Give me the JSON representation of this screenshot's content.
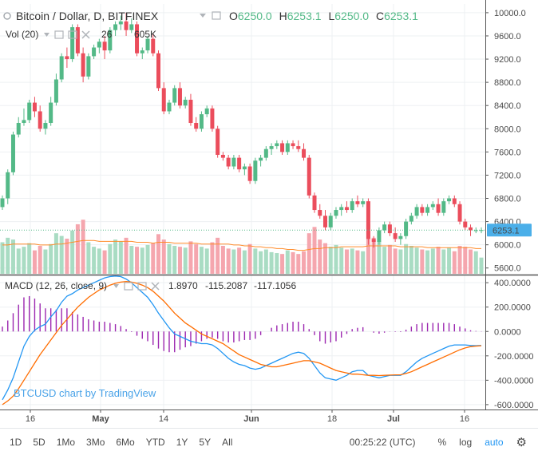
{
  "header": {
    "symbol_title": "Bitcoin / Dollar, D, BITFINEX",
    "ohlc": {
      "o_label": "O",
      "o": "6250.0",
      "h_label": "H",
      "h": "6253.1",
      "l_label": "L",
      "l": "6250.0",
      "c_label": "C",
      "c": "6253.1"
    },
    "volume_label": "Vol (20)",
    "volume_values": "26",
    "volume_ma": "605K"
  },
  "price_axis": {
    "ticks": [
      "10000.0",
      "9600.0",
      "9200.0",
      "8800.0",
      "8400.0",
      "8000.0",
      "7600.0",
      "7200.0",
      "6800.0",
      "6400.0",
      "6000.0",
      "5600.0"
    ],
    "last_price": "6253.1"
  },
  "macd": {
    "label": "MACD (12, 26, close, 9)",
    "hist_value": "1.8970",
    "macd_value": "-115.2087",
    "signal_value": "-117.1056",
    "ticks": [
      "400.0000",
      "200.0000",
      "0.0000",
      "-200.0000",
      "-400.0000",
      "-600.0000"
    ]
  },
  "time_axis": {
    "labels": [
      "16",
      "May",
      "14",
      "Jun",
      "18",
      "Jul",
      "16"
    ]
  },
  "watermark": "BTCUSD chart by TradingView",
  "bottom_bar": {
    "ranges": [
      "1D",
      "5D",
      "1Mo",
      "3Mo",
      "6Mo",
      "YTD",
      "1Y",
      "5Y",
      "All"
    ],
    "clock": "00:25:22 (UTC)",
    "percent": "%",
    "log": "log",
    "auto": "auto"
  },
  "colors": {
    "up": "#53b987",
    "down": "#eb4d5c",
    "vol_up": "#a9dcc3",
    "vol_down": "#f5a6ae",
    "ma": "#ff8c2b",
    "macd": "#2196f3",
    "signal": "#ff6d00",
    "hist": "#9c27b0",
    "grid": "#eef0f3",
    "last": "#4bafe9",
    "last_line": "#53b987"
  },
  "chart_data": [
    {
      "type": "candlestick",
      "title": "Bitcoin / Dollar, D, BITFINEX",
      "x_labels": [
        "16",
        "May",
        "14",
        "Jun",
        "18",
        "Jul",
        "16"
      ],
      "ylim": [
        5500,
        10150
      ],
      "ohlc": [
        [
          6650,
          6850,
          6600,
          6800
        ],
        [
          6800,
          7300,
          6700,
          7250
        ],
        [
          7250,
          7950,
          7200,
          7900
        ],
        [
          7900,
          8200,
          7850,
          8100
        ],
        [
          8100,
          8350,
          8050,
          8150
        ],
        [
          8150,
          8500,
          8100,
          8450
        ],
        [
          8450,
          8550,
          8200,
          8300
        ],
        [
          8300,
          8400,
          7950,
          8000
        ],
        [
          8000,
          8150,
          7900,
          8100
        ],
        [
          8100,
          8550,
          8050,
          8450
        ],
        [
          8450,
          8950,
          8400,
          8850
        ],
        [
          8850,
          9300,
          8800,
          9250
        ],
        [
          9250,
          9400,
          9050,
          9200
        ],
        [
          9200,
          9800,
          9150,
          9750
        ],
        [
          9750,
          9800,
          9250,
          9300
        ],
        [
          9300,
          9400,
          8800,
          8900
        ],
        [
          8900,
          9300,
          8850,
          9250
        ],
        [
          9250,
          9450,
          9200,
          9400
        ],
        [
          9400,
          9550,
          9300,
          9500
        ],
        [
          9500,
          9600,
          9200,
          9350
        ],
        [
          9350,
          9750,
          9300,
          9700
        ],
        [
          9700,
          9850,
          9600,
          9800
        ],
        [
          9800,
          9950,
          9700,
          9850
        ],
        [
          9850,
          10000,
          9600,
          9700
        ],
        [
          9700,
          9900,
          9650,
          9800
        ],
        [
          9800,
          9850,
          9250,
          9300
        ],
        [
          9300,
          9400,
          9200,
          9350
        ],
        [
          9350,
          9600,
          9300,
          9550
        ],
        [
          9550,
          9650,
          9250,
          9300
        ],
        [
          9300,
          9350,
          8650,
          8700
        ],
        [
          8700,
          8800,
          8250,
          8300
        ],
        [
          8300,
          8500,
          8250,
          8450
        ],
        [
          8450,
          8750,
          8400,
          8700
        ],
        [
          8700,
          8800,
          8350,
          8400
        ],
        [
          8400,
          8550,
          8350,
          8500
        ],
        [
          8500,
          8600,
          8050,
          8100
        ],
        [
          8100,
          8200,
          7950,
          8000
        ],
        [
          8000,
          8300,
          7950,
          8250
        ],
        [
          8250,
          8400,
          8200,
          8350
        ],
        [
          8350,
          8400,
          7950,
          8000
        ],
        [
          8000,
          8050,
          7500,
          7550
        ],
        [
          7550,
          7600,
          7450,
          7500
        ],
        [
          7500,
          7550,
          7300,
          7350
        ],
        [
          7350,
          7550,
          7300,
          7500
        ],
        [
          7500,
          7550,
          7250,
          7300
        ],
        [
          7300,
          7400,
          7200,
          7350
        ],
        [
          7350,
          7400,
          7050,
          7100
        ],
        [
          7100,
          7500,
          7050,
          7450
        ],
        [
          7450,
          7550,
          7350,
          7500
        ],
        [
          7500,
          7700,
          7450,
          7650
        ],
        [
          7650,
          7750,
          7550,
          7700
        ],
        [
          7700,
          7800,
          7650,
          7750
        ],
        [
          7750,
          7800,
          7550,
          7600
        ],
        [
          7600,
          7800,
          7550,
          7750
        ],
        [
          7750,
          7800,
          7650,
          7700
        ],
        [
          7700,
          7800,
          7600,
          7650
        ],
        [
          7650,
          7750,
          7450,
          7500
        ],
        [
          7500,
          7550,
          6800,
          6850
        ],
        [
          6850,
          6900,
          6550,
          6600
        ],
        [
          6600,
          6700,
          6450,
          6500
        ],
        [
          6500,
          6600,
          6250,
          6300
        ],
        [
          6300,
          6550,
          6250,
          6500
        ],
        [
          6500,
          6650,
          6450,
          6600
        ],
        [
          6600,
          6700,
          6500,
          6650
        ],
        [
          6650,
          6750,
          6550,
          6600
        ],
        [
          6600,
          6800,
          6550,
          6750
        ],
        [
          6750,
          6850,
          6650,
          6700
        ],
        [
          6700,
          6800,
          6650,
          6750
        ],
        [
          6750,
          6800,
          6000,
          6100
        ],
        [
          6100,
          6150,
          5950,
          6050
        ],
        [
          6050,
          6300,
          6000,
          6250
        ],
        [
          6250,
          6400,
          6200,
          6350
        ],
        [
          6350,
          6400,
          6150,
          6200
        ],
        [
          6200,
          6300,
          6050,
          6100
        ],
        [
          6100,
          6200,
          6000,
          6150
        ],
        [
          6150,
          6450,
          6100,
          6400
        ],
        [
          6400,
          6550,
          6350,
          6500
        ],
        [
          6500,
          6700,
          6450,
          6650
        ],
        [
          6650,
          6700,
          6500,
          6550
        ],
        [
          6550,
          6700,
          6500,
          6650
        ],
        [
          6650,
          6750,
          6600,
          6700
        ],
        [
          6700,
          6800,
          6500,
          6550
        ],
        [
          6550,
          6800,
          6500,
          6750
        ],
        [
          6750,
          6850,
          6700,
          6800
        ],
        [
          6800,
          6850,
          6650,
          6700
        ],
        [
          6700,
          6750,
          6350,
          6400
        ],
        [
          6400,
          6450,
          6250,
          6300
        ],
        [
          6300,
          6350,
          6150,
          6250
        ],
        [
          6250,
          6300,
          6200,
          6250
        ],
        [
          6250,
          6300,
          6200,
          6253.1
        ]
      ]
    },
    {
      "type": "bar",
      "title": "Vol (20)",
      "values": [
        35,
        40,
        38,
        28,
        30,
        34,
        26,
        31,
        27,
        33,
        45,
        42,
        39,
        48,
        55,
        60,
        35,
        30,
        28,
        26,
        33,
        38,
        36,
        40,
        31,
        30,
        29,
        32,
        34,
        44,
        38,
        33,
        31,
        30,
        29,
        36,
        33,
        30,
        28,
        35,
        40,
        31,
        28,
        27,
        29,
        26,
        33,
        28,
        25,
        27,
        24,
        23,
        22,
        26,
        24,
        22,
        25,
        45,
        52,
        38,
        34,
        30,
        32,
        29,
        27,
        28,
        26,
        25,
        55,
        40,
        36,
        30,
        32,
        28,
        27,
        33,
        31,
        29,
        27,
        26,
        28,
        30,
        27,
        29,
        25,
        31,
        30,
        27,
        25,
        18
      ],
      "ma_values": [
        32,
        32,
        33,
        33,
        33,
        33,
        33,
        32,
        32,
        32,
        33,
        33,
        34,
        35,
        36,
        37,
        37,
        37,
        36,
        36,
        36,
        36,
        36,
        36,
        36,
        35,
        35,
        35,
        34,
        35,
        35,
        35,
        34,
        34,
        34,
        34,
        34,
        33,
        33,
        33,
        33,
        33,
        33,
        32,
        32,
        31,
        31,
        30,
        30,
        29,
        29,
        28,
        28,
        27,
        27,
        26,
        26,
        27,
        28,
        28,
        29,
        29,
        29,
        30,
        30,
        30,
        30,
        30,
        31,
        31,
        31,
        31,
        31,
        31,
        30,
        30,
        30,
        30,
        30,
        29,
        29,
        29,
        29,
        29,
        29,
        29,
        29,
        29,
        28,
        28
      ]
    },
    {
      "type": "line",
      "title": "MACD (12, 26, close, 9)",
      "ylim": [
        -640,
        460
      ],
      "series": [
        {
          "name": "macd",
          "values": [
            -560,
            -480,
            -380,
            -250,
            -120,
            -40,
            10,
            40,
            60,
            120,
            170,
            240,
            290,
            310,
            340,
            360,
            380,
            400,
            420,
            440,
            450,
            455,
            450,
            430,
            400,
            360,
            320,
            280,
            220,
            150,
            90,
            30,
            -20,
            -40,
            -60,
            -80,
            -90,
            -100,
            -100,
            -110,
            -140,
            -180,
            -220,
            -250,
            -270,
            -280,
            -300,
            -310,
            -300,
            -280,
            -260,
            -240,
            -220,
            -200,
            -180,
            -170,
            -180,
            -220,
            -280,
            -340,
            -380,
            -390,
            -400,
            -380,
            -360,
            -330,
            -320,
            -320,
            -360,
            -370,
            -380,
            -370,
            -360,
            -360,
            -360,
            -330,
            -290,
            -250,
            -220,
            -200,
            -180,
            -160,
            -140,
            -120,
            -110,
            -110,
            -110,
            -115,
            -116,
            -115.2
          ]
        },
        {
          "name": "signal",
          "values": [
            -600,
            -570,
            -530,
            -470,
            -400,
            -330,
            -260,
            -190,
            -130,
            -70,
            -10,
            50,
            100,
            150,
            200,
            240,
            280,
            310,
            340,
            360,
            380,
            395,
            405,
            410,
            405,
            395,
            380,
            360,
            330,
            290,
            250,
            200,
            150,
            110,
            70,
            40,
            10,
            -20,
            -40,
            -60,
            -80,
            -100,
            -130,
            -160,
            -190,
            -210,
            -230,
            -250,
            -270,
            -280,
            -290,
            -290,
            -280,
            -270,
            -260,
            -250,
            -240,
            -240,
            -250,
            -260,
            -280,
            -300,
            -320,
            -330,
            -340,
            -350,
            -350,
            -355,
            -360,
            -360,
            -362,
            -360,
            -358,
            -356,
            -355,
            -345,
            -330,
            -310,
            -290,
            -270,
            -250,
            -230,
            -210,
            -190,
            -170,
            -150,
            -135,
            -125,
            -120,
            -117.1
          ]
        },
        {
          "name": "histogram",
          "values": [
            40,
            90,
            150,
            220,
            280,
            290,
            270,
            230,
            190,
            190,
            180,
            190,
            190,
            160,
            140,
            120,
            100,
            90,
            80,
            80,
            70,
            60,
            45,
            20,
            -5,
            -35,
            -60,
            -80,
            -110,
            -140,
            -160,
            -170,
            -170,
            -150,
            -130,
            -120,
            -100,
            -80,
            -60,
            -50,
            -60,
            -80,
            -90,
            -90,
            -80,
            -70,
            -70,
            -60,
            -30,
            0,
            30,
            50,
            60,
            70,
            80,
            80,
            60,
            20,
            -30,
            -80,
            -100,
            -90,
            -80,
            -50,
            -20,
            20,
            30,
            35,
            0,
            -10,
            -18,
            -10,
            -2,
            -4,
            -5,
            15,
            40,
            60,
            70,
            70,
            70,
            70,
            70,
            70,
            60,
            40,
            25,
            10,
            4,
            1.9
          ]
        }
      ]
    }
  ]
}
